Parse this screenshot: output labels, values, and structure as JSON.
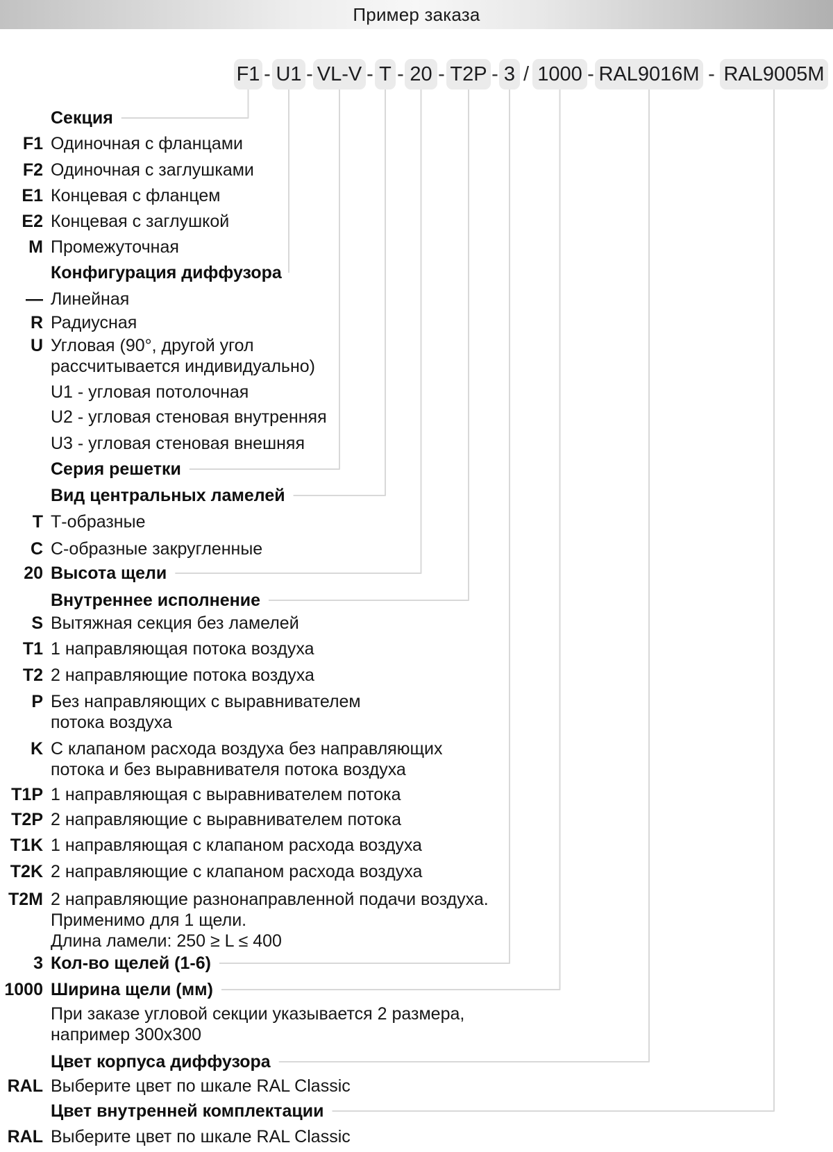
{
  "header": {
    "title": "Пример заказа"
  },
  "order_code": {
    "segments": [
      "F1",
      "U1",
      "VL-V",
      "T",
      "20",
      "T2P",
      "3",
      "1000",
      "RAL9016M",
      "RAL9005M"
    ],
    "separators": [
      "-",
      "-",
      "-",
      "-",
      "-",
      "-",
      "/",
      "-",
      "-"
    ]
  },
  "legend": {
    "rows": [
      {
        "key": "",
        "text": "Секция",
        "type": "heading"
      },
      {
        "key": "F1",
        "text": "Одиночная с фланцами",
        "type": "item"
      },
      {
        "key": "F2",
        "text": "Одиночная с заглушками",
        "type": "item"
      },
      {
        "key": "E1",
        "text": "Концевая с фланцем",
        "type": "item"
      },
      {
        "key": "E2",
        "text": "Концевая с заглушкой",
        "type": "item"
      },
      {
        "key": "M",
        "text": "Промежуточная",
        "type": "item"
      },
      {
        "key": "",
        "text": "Конфигурация диффузора",
        "type": "heading"
      },
      {
        "key": "—",
        "text": "Линейная",
        "type": "item"
      },
      {
        "key": "R",
        "text": "Радиусная",
        "type": "item"
      },
      {
        "key": "U",
        "text": "Угловая (90°, другой угол\nрассчитывается индивидуально)",
        "type": "item"
      },
      {
        "key": "",
        "text": "U1 - угловая потолочная",
        "type": "sub"
      },
      {
        "key": "",
        "text": "U2 - угловая стеновая внутренняя",
        "type": "sub"
      },
      {
        "key": "",
        "text": "U3 - угловая стеновая внешняя",
        "type": "sub"
      },
      {
        "key": "",
        "text": "Серия решетки",
        "type": "heading"
      },
      {
        "key": "",
        "text": "Вид центральных ламелей",
        "type": "heading"
      },
      {
        "key": "T",
        "text": "Т-образные",
        "type": "item"
      },
      {
        "key": "C",
        "text": "С-образные закругленные",
        "type": "item"
      },
      {
        "key": "20",
        "text": "Высота щели",
        "type": "heading"
      },
      {
        "key": "",
        "text": "Внутреннее исполнение",
        "type": "heading"
      },
      {
        "key": "S",
        "text": "Вытяжная секция без ламелей",
        "type": "item"
      },
      {
        "key": "T1",
        "text": "1 направляющая потока воздуха",
        "type": "item"
      },
      {
        "key": "T2",
        "text": "2 направляющие потока воздуха",
        "type": "item"
      },
      {
        "key": "P",
        "text": "Без направляющих с выравнивателем\nпотока воздуха",
        "type": "item"
      },
      {
        "key": "K",
        "text": "С клапаном расхода воздуха без направляющих\nпотока и без выравнивателя потока воздуха",
        "type": "item"
      },
      {
        "key": "T1P",
        "text": "1 направляющая с выравнивателем потока",
        "type": "item"
      },
      {
        "key": "T2P",
        "text": "2 направляющие с выравнивателем потока",
        "type": "item"
      },
      {
        "key": "T1K",
        "text": "1 направляющая с клапаном расхода воздуха",
        "type": "item"
      },
      {
        "key": "T2K",
        "text": "2 направляющие с клапаном расхода воздуха",
        "type": "item"
      },
      {
        "key": "T2M",
        "text": "2 направляющие разнонаправленной подачи воздуха.\nПрименимо для 1 щели.\nДлина ламели: 250 ≥ L ≤ 400",
        "type": "item"
      },
      {
        "key": "3",
        "text": "Кол-во щелей (1-6)",
        "type": "heading"
      },
      {
        "key": "1000",
        "text": "Ширина щели (мм)",
        "type": "heading"
      },
      {
        "key": "",
        "text": "При заказе угловой секции указывается 2 размера,\nнапример 300x300",
        "type": "note"
      },
      {
        "key": "",
        "text": "Цвет корпуса диффузора",
        "type": "heading"
      },
      {
        "key": "RAL",
        "text": "Выберите цвет по шкале RAL Classic",
        "type": "item"
      },
      {
        "key": "",
        "text": "Цвет внутренней комплектации",
        "type": "heading"
      },
      {
        "key": "RAL",
        "text": "Выберите цвет по шкале RAL Classic",
        "type": "item"
      }
    ]
  },
  "colors": {
    "box_fill": "#ebebeb",
    "connector_line": "#d8d8d8",
    "header_gray": "#c2c2c2",
    "text": "#161616"
  }
}
